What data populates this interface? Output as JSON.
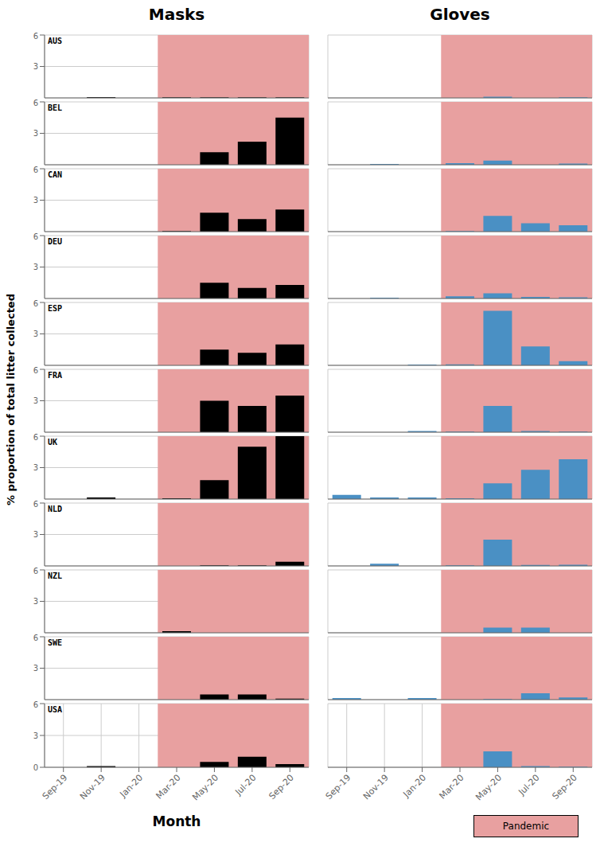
{
  "chart_data": [
    {
      "type": "bar",
      "title": "Masks",
      "xlabel": "Month",
      "ylabel": "% proportion of total litter collected",
      "categories": [
        "Sep-19",
        "Nov-19",
        "Jan-20",
        "Mar-20",
        "May-20",
        "Jul-20",
        "Sep-20"
      ],
      "series": [
        {
          "name": "AUS",
          "values": [
            0,
            0.08,
            0,
            0.05,
            0.05,
            0.05,
            0.05
          ]
        },
        {
          "name": "BEL",
          "values": [
            0,
            0,
            0,
            0,
            1.2,
            2.2,
            4.5
          ]
        },
        {
          "name": "CAN",
          "values": [
            0,
            0,
            0,
            0.05,
            1.8,
            1.2,
            2.1
          ]
        },
        {
          "name": "DEU",
          "values": [
            0,
            0,
            0,
            0,
            1.5,
            1.0,
            1.3
          ]
        },
        {
          "name": "ESP",
          "values": [
            0,
            0,
            0,
            0,
            1.5,
            1.2,
            2.0
          ]
        },
        {
          "name": "FRA",
          "values": [
            0,
            0,
            0,
            0,
            3.0,
            2.5,
            3.5
          ]
        },
        {
          "name": "UK",
          "values": [
            0,
            0.15,
            0,
            0.08,
            1.8,
            5.0,
            6.0
          ]
        },
        {
          "name": "NLD",
          "values": [
            0,
            0,
            0,
            0,
            0.05,
            0.05,
            0.4
          ]
        },
        {
          "name": "NZL",
          "values": [
            0,
            0,
            0,
            0.15,
            0,
            0,
            0
          ]
        },
        {
          "name": "SWE",
          "values": [
            0,
            0,
            0,
            0,
            0.5,
            0.5,
            0.1
          ]
        },
        {
          "name": "USA",
          "values": [
            0,
            0.12,
            0,
            0,
            0.5,
            1.0,
            0.3
          ]
        }
      ],
      "color": "#000000",
      "ylim": [
        0,
        6
      ],
      "yticks": [
        0,
        3,
        6
      ],
      "grid": true
    },
    {
      "type": "bar",
      "title": "Gloves",
      "categories": [
        "Sep-19",
        "Nov-19",
        "Jan-20",
        "Mar-20",
        "May-20",
        "Jul-20",
        "Sep-20"
      ],
      "series": [
        {
          "values": [
            0,
            0,
            0,
            0,
            0.12,
            0,
            0.05
          ]
        },
        {
          "values": [
            0,
            0.08,
            0,
            0.15,
            0.4,
            0,
            0.12
          ]
        },
        {
          "values": [
            0,
            0,
            0,
            0.05,
            1.5,
            0.8,
            0.6
          ]
        },
        {
          "values": [
            0,
            0.08,
            0,
            0.2,
            0.5,
            0.15,
            0.12
          ]
        },
        {
          "values": [
            0,
            0,
            0.08,
            0.1,
            5.2,
            1.8,
            0.4
          ]
        },
        {
          "values": [
            0,
            0,
            0.12,
            0.05,
            2.5,
            0.12,
            0.05
          ]
        },
        {
          "values": [
            0.4,
            0.15,
            0.15,
            0.08,
            1.5,
            2.8,
            3.8
          ]
        },
        {
          "values": [
            0,
            0.2,
            0,
            0.05,
            2.5,
            0.1,
            0.12
          ]
        },
        {
          "values": [
            0,
            0,
            0,
            0,
            0.5,
            0.5,
            0
          ]
        },
        {
          "values": [
            0.15,
            0,
            0.15,
            0,
            0.05,
            0.6,
            0.2
          ]
        },
        {
          "values": [
            0,
            0,
            0,
            0,
            1.5,
            0.12,
            0.05
          ]
        }
      ],
      "color": "#4a90c4",
      "ylim": [
        0,
        6
      ],
      "yticks": [
        0,
        3,
        6
      ],
      "grid": true,
      "tick_labels": "x",
      "annotations": [
        {
          "text": "Pandemic",
          "x_start": "Mar-20",
          "x_end": "Sep-20",
          "color": "#e8a0a0"
        }
      ]
    }
  ]
}
